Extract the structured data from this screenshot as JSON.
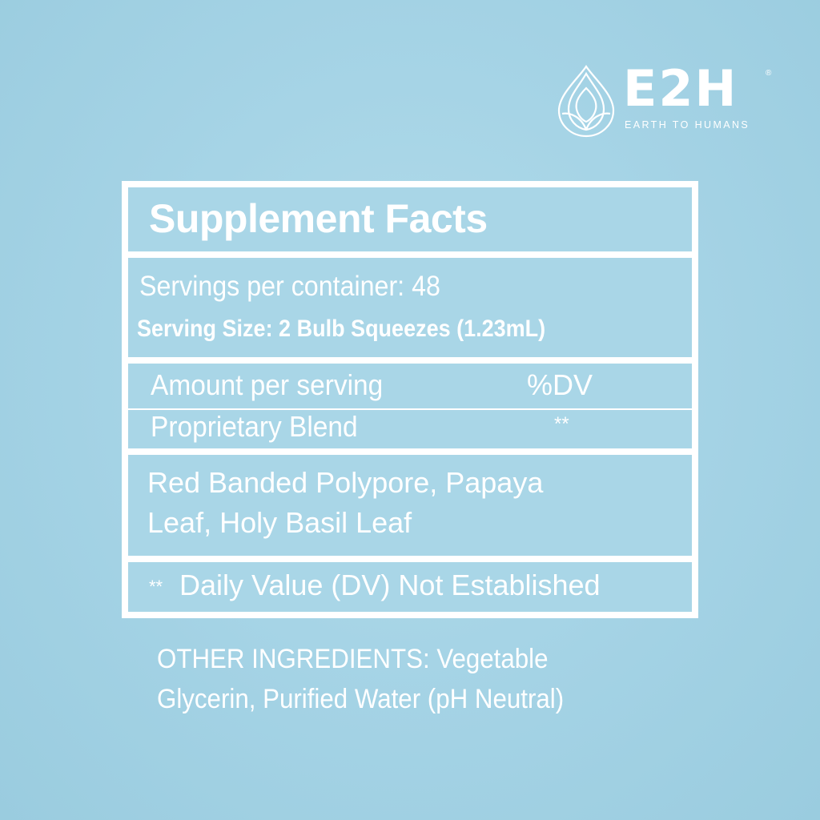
{
  "logo": {
    "brand": "E2H",
    "registered": "®",
    "tagline": "EARTH TO HUMANS",
    "icon": "water-drop-leaf-icon"
  },
  "facts": {
    "title": "Supplement Facts",
    "servings_per_container": "Servings per container: 48",
    "serving_size": "Serving Size: 2 Bulb Squeezes (1.23mL)",
    "header_amount": "Amount per serving",
    "header_dv": "%DV",
    "blend_name": "Proprietary Blend",
    "blend_dv": "**",
    "ingredients_line1": "Red Banded Polypore, Papaya",
    "ingredients_line2": "Leaf, Holy Basil Leaf",
    "note_marker": "**",
    "note_text": "Daily Value (DV) Not Established"
  },
  "other_ingredients": {
    "line1": "OTHER INGREDIENTS: Vegetable",
    "line2": "Glycerin, Purified Water (pH Neutral)"
  },
  "colors": {
    "background": "#a6d4e6",
    "text": "#ffffff"
  }
}
